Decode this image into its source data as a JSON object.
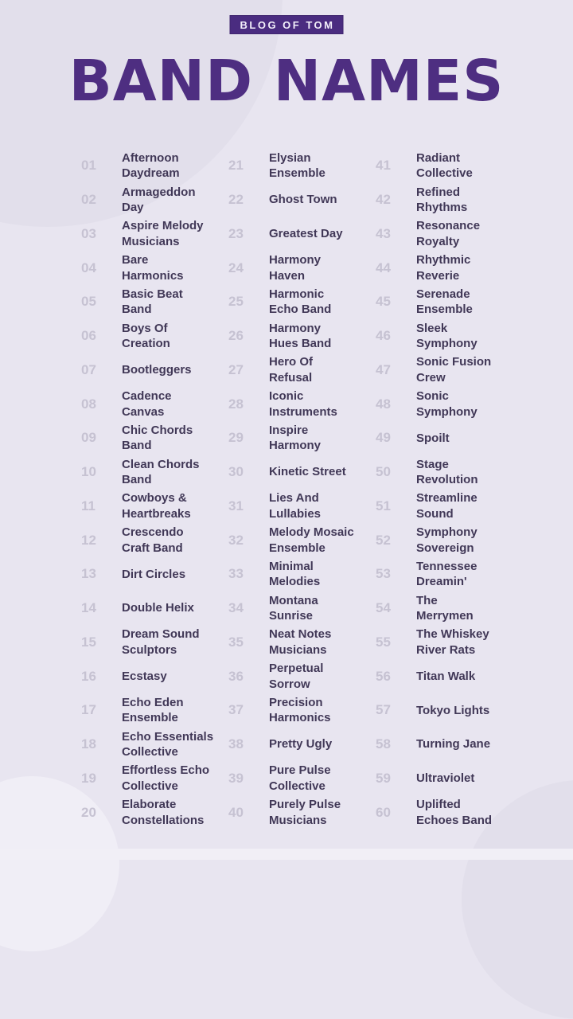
{
  "badge": {
    "label": "BLOG OF TOM"
  },
  "title": "BAND NAMES",
  "colors": {
    "background": "#e8e5f0",
    "badge_bg": "#4a2c80",
    "badge_text": "#f2effa",
    "title_text": "#4e2e81",
    "number_text": "#c6c2d2",
    "name_text": "#413857"
  },
  "list": {
    "columns": [
      {
        "items": [
          {
            "num": "01",
            "name": "Afternoon\nDaydream"
          },
          {
            "num": "02",
            "name": "Armageddon\nDay"
          },
          {
            "num": "03",
            "name": "Aspire Melody\nMusicians"
          },
          {
            "num": "04",
            "name": "Bare\nHarmonics"
          },
          {
            "num": "05",
            "name": "Basic Beat\nBand"
          },
          {
            "num": "06",
            "name": "Boys Of\nCreation"
          },
          {
            "num": "07",
            "name": "Bootleggers"
          },
          {
            "num": "08",
            "name": "Cadence\nCanvas"
          },
          {
            "num": "09",
            "name": "Chic Chords\nBand"
          },
          {
            "num": "10",
            "name": "Clean Chords\nBand"
          },
          {
            "num": "11",
            "name": "Cowboys &\nHeartbreaks"
          },
          {
            "num": "12",
            "name": "Crescendo\nCraft Band"
          },
          {
            "num": "13",
            "name": "Dirt Circles"
          },
          {
            "num": "14",
            "name": "Double Helix"
          },
          {
            "num": "15",
            "name": "Dream Sound\nSculptors"
          },
          {
            "num": "16",
            "name": "Ecstasy"
          },
          {
            "num": "17",
            "name": "Echo Eden\nEnsemble"
          },
          {
            "num": "18",
            "name": "Echo Essentials\nCollective"
          },
          {
            "num": "19",
            "name": "Effortless Echo\nCollective"
          },
          {
            "num": "20",
            "name": "Elaborate\nConstellations"
          }
        ]
      },
      {
        "items": [
          {
            "num": "21",
            "name": "Elysian\nEnsemble"
          },
          {
            "num": "22",
            "name": "Ghost Town"
          },
          {
            "num": "23",
            "name": "Greatest Day"
          },
          {
            "num": "24",
            "name": "Harmony\nHaven"
          },
          {
            "num": "25",
            "name": "Harmonic\nEcho Band"
          },
          {
            "num": "26",
            "name": "Harmony\nHues Band"
          },
          {
            "num": "27",
            "name": "Hero Of\nRefusal"
          },
          {
            "num": "28",
            "name": "Iconic\nInstruments"
          },
          {
            "num": "29",
            "name": "Inspire\nHarmony"
          },
          {
            "num": "30",
            "name": "Kinetic Street"
          },
          {
            "num": "31",
            "name": "Lies And\nLullabies"
          },
          {
            "num": "32",
            "name": "Melody Mosaic\nEnsemble"
          },
          {
            "num": "33",
            "name": "Minimal\nMelodies"
          },
          {
            "num": "34",
            "name": "Montana\nSunrise"
          },
          {
            "num": "35",
            "name": "Neat Notes\nMusicians"
          },
          {
            "num": "36",
            "name": "Perpetual\nSorrow"
          },
          {
            "num": "37",
            "name": "Precision\nHarmonics"
          },
          {
            "num": "38",
            "name": "Pretty Ugly"
          },
          {
            "num": "39",
            "name": "Pure Pulse\nCollective"
          },
          {
            "num": "40",
            "name": "Purely Pulse\nMusicians"
          }
        ]
      },
      {
        "items": [
          {
            "num": "41",
            "name": "Radiant\nCollective"
          },
          {
            "num": "42",
            "name": "Refined\nRhythms"
          },
          {
            "num": "43",
            "name": "Resonance\nRoyalty"
          },
          {
            "num": "44",
            "name": "Rhythmic\nReverie"
          },
          {
            "num": "45",
            "name": "Serenade\nEnsemble"
          },
          {
            "num": "46",
            "name": "Sleek\nSymphony"
          },
          {
            "num": "47",
            "name": "Sonic Fusion\nCrew"
          },
          {
            "num": "48",
            "name": "Sonic\nSymphony"
          },
          {
            "num": "49",
            "name": "Spoilt"
          },
          {
            "num": "50",
            "name": "Stage\nRevolution"
          },
          {
            "num": "51",
            "name": "Streamline\nSound"
          },
          {
            "num": "52",
            "name": "Symphony\nSovereign"
          },
          {
            "num": "53",
            "name": "Tennessee\nDreamin'"
          },
          {
            "num": "54",
            "name": "The\nMerrymen"
          },
          {
            "num": "55",
            "name": "The Whiskey\nRiver Rats"
          },
          {
            "num": "56",
            "name": "Titan Walk"
          },
          {
            "num": "57",
            "name": "Tokyo Lights"
          },
          {
            "num": "58",
            "name": "Turning Jane"
          },
          {
            "num": "59",
            "name": "Ultraviolet"
          },
          {
            "num": "60",
            "name": "Uplifted\nEchoes Band"
          }
        ]
      }
    ]
  }
}
